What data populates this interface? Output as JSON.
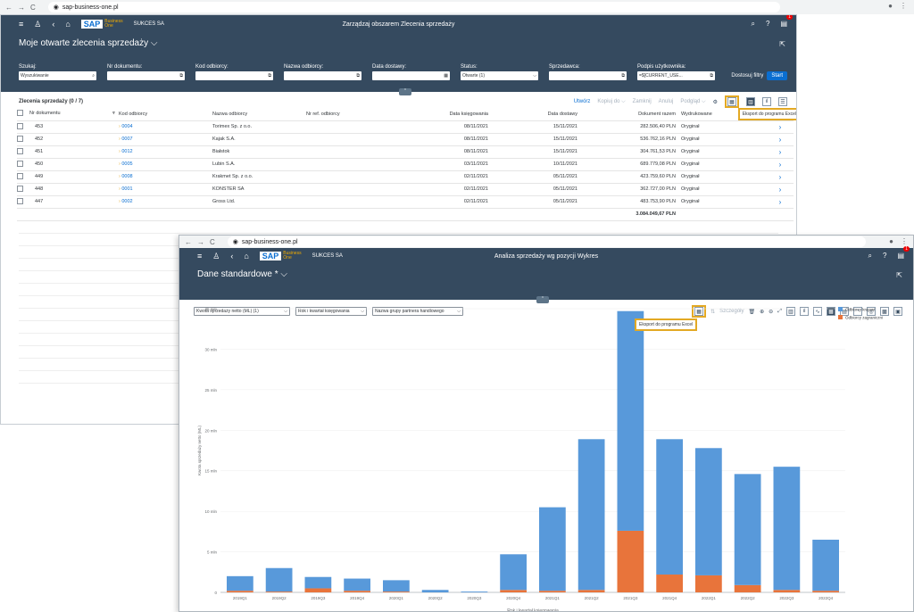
{
  "browser1": {
    "url": "sap-business-one.pl"
  },
  "w1": {
    "company": "SUKCES SA",
    "title": "Zarządzaj obszarem Zlecenia sprzedaży",
    "notif_count": "1",
    "variant": "Moje otwarte zlecenia sprzedaży",
    "filters": [
      {
        "label": "Szukaj:",
        "value": "Wyszukiwanie",
        "icon": "search-icon"
      },
      {
        "label": "Nr dokumentu:",
        "value": "",
        "icon": "value-help-icon"
      },
      {
        "label": "Kod odbiorcy:",
        "value": "",
        "icon": "value-help-icon"
      },
      {
        "label": "Nazwa odbiorcy:",
        "value": "",
        "icon": "value-help-icon"
      },
      {
        "label": "Data dostawy:",
        "value": "",
        "icon": "calendar-icon"
      },
      {
        "label": "Status:",
        "value": "Otwarte (1)",
        "icon": "dropdown-icon"
      },
      {
        "label": "Sprzedawca:",
        "value": "",
        "icon": "value-help-icon"
      },
      {
        "label": "Podpis użytkownika:",
        "value": "=$[CURRENT_USE...",
        "icon": "value-help-icon"
      }
    ],
    "adapt_filters": "Dostosuj filtry",
    "start": "Start",
    "table_title": "Zlecenia sprzedaży (0 / 7)",
    "actions": {
      "create": "Utwórz",
      "copy_to": "Kopiuj do",
      "close": "Zamknij",
      "cancel": "Anuluj",
      "preview": "Podgląd"
    },
    "export_tooltip": "Eksport do programu Excel",
    "columns": [
      "Nr dokumentu",
      "Kod odbiorcy",
      "Nazwa odbiorcy",
      "Nr ref. odbiorcy",
      "Data księgowania",
      "Data dostawy",
      "Dokument razem",
      "Wydrukowane"
    ],
    "rows": [
      {
        "nr": "453",
        "kod": "0004",
        "nazwa": "Torimex Sp. z o.o.",
        "ref": "",
        "dk": "08/11/2021",
        "dd": "15/11/2021",
        "razem": "282.506,40 PLN",
        "wyd": "Oryginał"
      },
      {
        "nr": "452",
        "kod": "0007",
        "nazwa": "Kajak S.A.",
        "ref": "",
        "dk": "08/11/2021",
        "dd": "15/11/2021",
        "razem": "536.762,16 PLN",
        "wyd": "Oryginał"
      },
      {
        "nr": "451",
        "kod": "0012",
        "nazwa": "Białstok",
        "ref": "",
        "dk": "08/11/2021",
        "dd": "15/11/2021",
        "razem": "304.761,53 PLN",
        "wyd": "Oryginał"
      },
      {
        "nr": "450",
        "kod": "0005",
        "nazwa": "Lubin S.A.",
        "ref": "",
        "dk": "03/11/2021",
        "dd": "10/11/2021",
        "razem": "689.779,08 PLN",
        "wyd": "Oryginał"
      },
      {
        "nr": "449",
        "kod": "0008",
        "nazwa": "Krakmet Sp. z o.o.",
        "ref": "",
        "dk": "02/11/2021",
        "dd": "05/11/2021",
        "razem": "423.759,60 PLN",
        "wyd": "Oryginał"
      },
      {
        "nr": "448",
        "kod": "0001",
        "nazwa": "KONSTER SA",
        "ref": "",
        "dk": "02/11/2021",
        "dd": "05/11/2021",
        "razem": "362.727,00 PLN",
        "wyd": "Oryginał"
      },
      {
        "nr": "447",
        "kod": "0002",
        "nazwa": "Gross Ltd.",
        "ref": "",
        "dk": "02/11/2021",
        "dd": "05/11/2021",
        "razem": "483.753,90 PLN",
        "wyd": "Oryginał"
      }
    ],
    "total": "3.084.049,67 PLN"
  },
  "browser2": {
    "url": "sap-business-one.pl"
  },
  "w2": {
    "company": "SUKCES SA",
    "title": "Analiza sprzedaży wg pozycji Wykres",
    "notif_count": "1",
    "variant": "Dane standardowe *",
    "selectors": [
      "Kwota sprzedaży netto (ML) (1)",
      "Rok i kwartał księgowania",
      "Nazwa grupy partnera handlowego"
    ],
    "details_label": "Szczegóły",
    "export_tooltip": "Eksport do programu Excel"
  },
  "chart_data": {
    "type": "bar",
    "stacked": true,
    "categories": [
      "2019Q1",
      "2019Q2",
      "2019Q3",
      "2019Q4",
      "2020Q1",
      "2020Q2",
      "2020Q3",
      "2020Q4",
      "2021Q1",
      "2021Q2",
      "2021Q3",
      "2021Q4",
      "2022Q1",
      "2022Q2",
      "2022Q3",
      "2022Q4"
    ],
    "series": [
      {
        "name": "Odbiorcy krajowi",
        "color": "#5899da",
        "values": [
          1.8,
          2.9,
          1.4,
          1.5,
          1.4,
          0.3,
          0.1,
          4.4,
          10.3,
          18.6,
          27.1,
          16.7,
          15.7,
          13.7,
          15.2,
          6.3
        ]
      },
      {
        "name": "Odbiorcy zagraniczni",
        "color": "#e8743b",
        "values": [
          0.2,
          0.1,
          0.5,
          0.2,
          0.1,
          0.0,
          0.0,
          0.3,
          0.2,
          0.3,
          7.6,
          2.2,
          2.1,
          0.9,
          0.3,
          0.2
        ]
      }
    ],
    "yticks": [
      "0",
      "5 mln",
      "10 mln",
      "15 mln",
      "20 mln",
      "25 mln",
      "30 mln",
      "35 mln"
    ],
    "ylim": [
      0,
      35
    ],
    "ylabel": "Kwota sprzedaży netto (ML)",
    "xlabel": "Rok i kwartał księgowania",
    "legend_position": "top-right"
  }
}
